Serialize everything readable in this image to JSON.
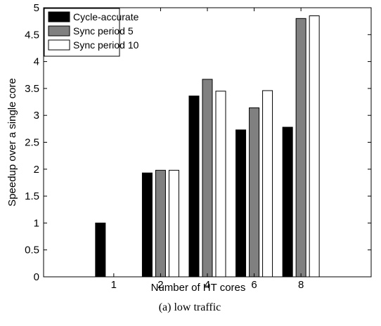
{
  "chart_data": {
    "type": "bar",
    "categories": [
      "1",
      "2",
      "4",
      "6",
      "8"
    ],
    "series": [
      {
        "name": "Cycle-accurate",
        "color": "#000000",
        "values": [
          1.0,
          1.93,
          3.36,
          2.73,
          2.78
        ]
      },
      {
        "name": "Sync period 5",
        "color": "#808080",
        "values": [
          0.0,
          1.98,
          3.67,
          3.14,
          4.8
        ]
      },
      {
        "name": "Sync period 10",
        "color": "#ffffff",
        "values": [
          0.0,
          1.98,
          3.45,
          3.46,
          4.85
        ]
      }
    ],
    "xlabel": "Number of HT cores",
    "ylabel": "Speedup over a single core",
    "ylim": [
      0,
      5
    ],
    "yticks": [
      "0",
      "0.5",
      "1",
      "1.5",
      "2",
      "2.5",
      "3",
      "3.5",
      "4",
      "4.5",
      "5"
    ],
    "grid": false,
    "legend_position": "top-left"
  },
  "caption": "(a) low traffic"
}
